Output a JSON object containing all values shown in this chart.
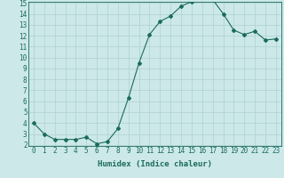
{
  "x": [
    0,
    1,
    2,
    3,
    4,
    5,
    6,
    7,
    8,
    9,
    10,
    11,
    12,
    13,
    14,
    15,
    16,
    17,
    18,
    19,
    20,
    21,
    22,
    23
  ],
  "y": [
    4,
    3,
    2.5,
    2.5,
    2.5,
    2.7,
    2.1,
    2.3,
    3.5,
    6.3,
    9.5,
    12.1,
    13.3,
    13.8,
    14.7,
    15.1,
    15.3,
    15.3,
    14.0,
    12.5,
    12.1,
    12.4,
    11.6,
    11.7
  ],
  "line_color": "#1a6b5e",
  "marker": "D",
  "marker_size": 2,
  "bg_color": "#cce8e8",
  "grid_color": "#b0d0d0",
  "xlabel": "Humidex (Indice chaleur)",
  "xlabel_fontsize": 6.5,
  "tick_fontsize": 5.5,
  "ylim": [
    2,
    15
  ],
  "xlim": [
    -0.5,
    23.5
  ],
  "yticks": [
    2,
    3,
    4,
    5,
    6,
    7,
    8,
    9,
    10,
    11,
    12,
    13,
    14,
    15
  ],
  "xticks": [
    0,
    1,
    2,
    3,
    4,
    5,
    6,
    7,
    8,
    9,
    10,
    11,
    12,
    13,
    14,
    15,
    16,
    17,
    18,
    19,
    20,
    21,
    22,
    23
  ]
}
